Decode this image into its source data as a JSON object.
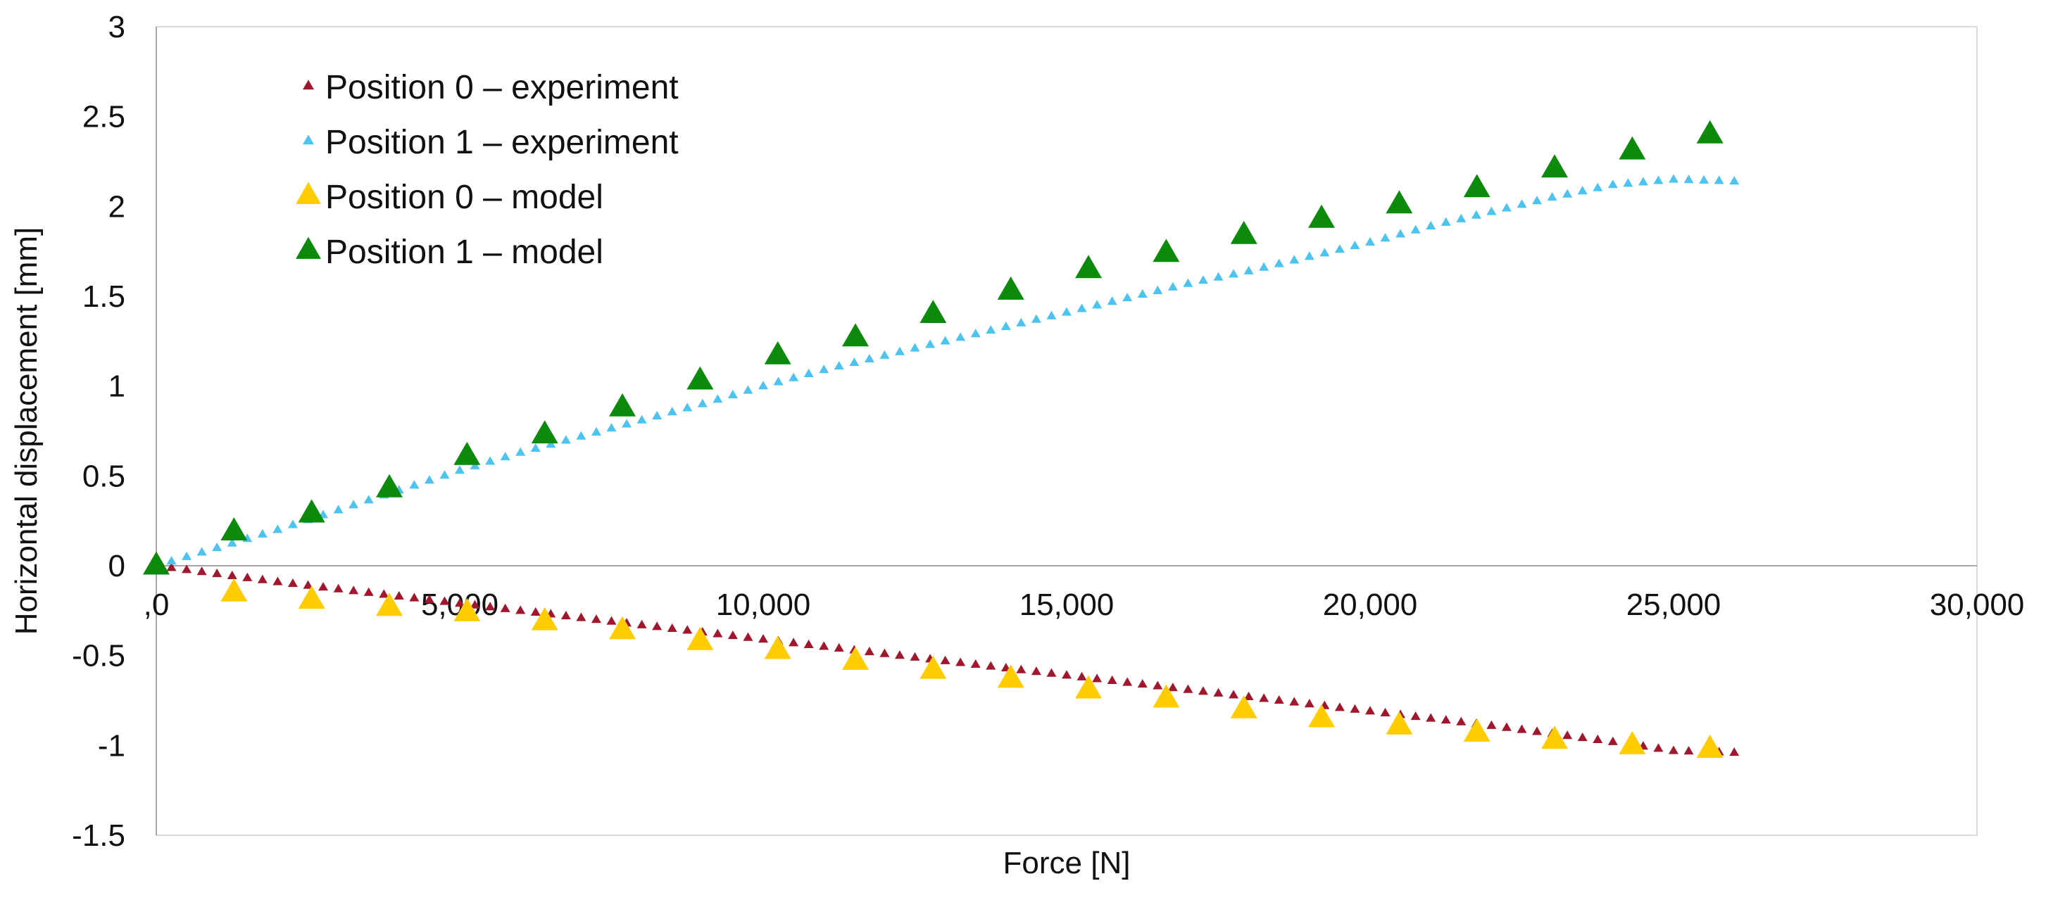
{
  "chart_data": {
    "type": "scatter",
    "title": "",
    "xlabel": "Force [N]",
    "ylabel": "Horizontal displacement [mm]",
    "xlim": [
      0,
      30000
    ],
    "ylim": [
      -1.5,
      3
    ],
    "x_ticks": [
      {
        "value": 0,
        "label": ",0"
      },
      {
        "value": 5000,
        "label": "5,000"
      },
      {
        "value": 10000,
        "label": "10,000"
      },
      {
        "value": 15000,
        "label": "15,000"
      },
      {
        "value": 20000,
        "label": "20,000"
      },
      {
        "value": 25000,
        "label": "25,000"
      },
      {
        "value": 30000,
        "label": "30,000"
      }
    ],
    "y_ticks": [
      {
        "value": 3,
        "label": "3"
      },
      {
        "value": 2.5,
        "label": "2.5"
      },
      {
        "value": 2,
        "label": "2"
      },
      {
        "value": 1.5,
        "label": "1.5"
      },
      {
        "value": 1,
        "label": "1"
      },
      {
        "value": 0.5,
        "label": "0.5"
      },
      {
        "value": 0,
        "label": "0"
      },
      {
        "value": -0.5,
        "label": "-0.5"
      },
      {
        "value": -1,
        "label": "-1"
      },
      {
        "value": -1.5,
        "label": "-1.5"
      }
    ],
    "grid": false,
    "legend_position": "top-left",
    "series": [
      {
        "name": "Position 0 – experiment",
        "marker": "small-triangle",
        "color": "#A0182E",
        "x": [
          0,
          2000,
          4000,
          6000,
          8000,
          10000,
          12000,
          14000,
          16000,
          18000,
          20000,
          22000,
          24000,
          25000,
          26000
        ],
        "y": [
          0,
          -0.09,
          -0.17,
          -0.25,
          -0.33,
          -0.41,
          -0.49,
          -0.57,
          -0.65,
          -0.73,
          -0.81,
          -0.89,
          -0.98,
          -1.03,
          -1.04
        ]
      },
      {
        "name": "Position 1 – experiment",
        "marker": "small-triangle",
        "color": "#4DC3F0",
        "x": [
          0,
          1000,
          2000,
          3000,
          4000,
          5000,
          6000,
          7000,
          8000,
          9000,
          10000,
          11000,
          12000,
          13000,
          14000,
          15000,
          16000,
          17000,
          18000,
          19000,
          20000,
          21000,
          22000,
          23000,
          24000,
          25000,
          26000
        ],
        "y": [
          0,
          0.1,
          0.2,
          0.31,
          0.42,
          0.53,
          0.63,
          0.72,
          0.81,
          0.9,
          1.0,
          1.09,
          1.17,
          1.25,
          1.33,
          1.41,
          1.49,
          1.57,
          1.64,
          1.72,
          1.8,
          1.89,
          1.97,
          2.05,
          2.12,
          2.15,
          2.14
        ]
      },
      {
        "name": "Position 0 – model",
        "marker": "large-triangle",
        "color": "#FFCC00",
        "x": [
          0,
          1280,
          2560,
          3840,
          5120,
          6400,
          7680,
          8960,
          10240,
          11520,
          12800,
          14080,
          15360,
          16640,
          17920,
          19200,
          20480,
          21760,
          23040,
          24320,
          25600
        ],
        "y": [
          0,
          -0.15,
          -0.19,
          -0.23,
          -0.26,
          -0.31,
          -0.36,
          -0.42,
          -0.47,
          -0.53,
          -0.58,
          -0.63,
          -0.69,
          -0.74,
          -0.8,
          -0.85,
          -0.89,
          -0.93,
          -0.97,
          -1.0,
          -1.02
        ]
      },
      {
        "name": "Position 1 – model",
        "marker": "large-triangle",
        "color": "#0B8A0B",
        "x": [
          0,
          1280,
          2560,
          3840,
          5120,
          6400,
          7680,
          8960,
          10240,
          11520,
          12800,
          14080,
          15360,
          16640,
          17920,
          19200,
          20480,
          21760,
          23040,
          24320,
          25600
        ],
        "y": [
          0,
          0.19,
          0.29,
          0.43,
          0.61,
          0.73,
          0.88,
          1.03,
          1.17,
          1.27,
          1.4,
          1.53,
          1.65,
          1.74,
          1.84,
          1.93,
          2.01,
          2.1,
          2.21,
          2.31,
          2.4
        ]
      }
    ]
  }
}
